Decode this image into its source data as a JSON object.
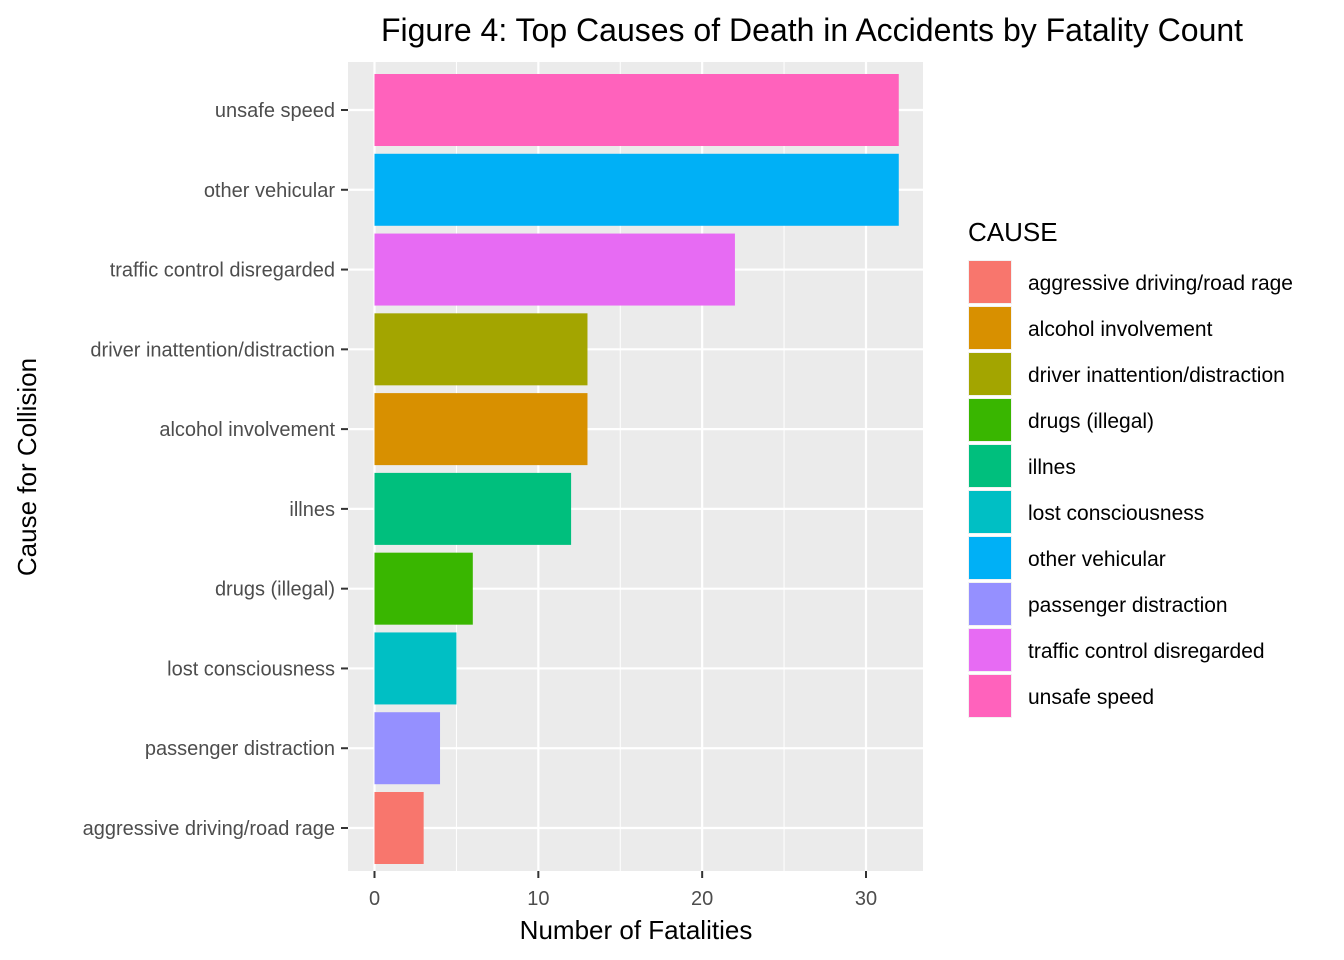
{
  "chart_data": {
    "type": "bar",
    "orientation": "horizontal",
    "title": "Figure 4: Top Causes of Death in Accidents by Fatality Count",
    "xlabel": "Number of Fatalities",
    "ylabel": "Cause for Collision",
    "xlim": [
      0,
      33.6
    ],
    "x_ticks": [
      0,
      10,
      20,
      30
    ],
    "grid": true,
    "legend_title": "CAUSE",
    "legend_position": "right",
    "categories_order_top_to_bottom": [
      "unsafe speed",
      "other vehicular",
      "traffic control disregarded",
      "driver inattention/distraction",
      "alcohol involvement",
      "illnes",
      "drugs (illegal)",
      "lost consciousness",
      "passenger distraction",
      "aggressive driving/road rage"
    ],
    "values": [
      32,
      32,
      22,
      13,
      13,
      12,
      6,
      5,
      4,
      3
    ],
    "legend": [
      {
        "label": "aggressive driving/road rage",
        "color": "#F8766D"
      },
      {
        "label": "alcohol involvement",
        "color": "#D89000"
      },
      {
        "label": "driver inattention/distraction",
        "color": "#A3A500"
      },
      {
        "label": "drugs (illegal)",
        "color": "#39B600"
      },
      {
        "label": "illnes",
        "color": "#00BF7D"
      },
      {
        "label": "lost consciousness",
        "color": "#00BFC4"
      },
      {
        "label": "other vehicular",
        "color": "#00B0F6"
      },
      {
        "label": "passenger distraction",
        "color": "#9590FF"
      },
      {
        "label": "traffic control disregarded",
        "color": "#E76BF3"
      },
      {
        "label": "unsafe speed",
        "color": "#FF62BC"
      }
    ]
  }
}
